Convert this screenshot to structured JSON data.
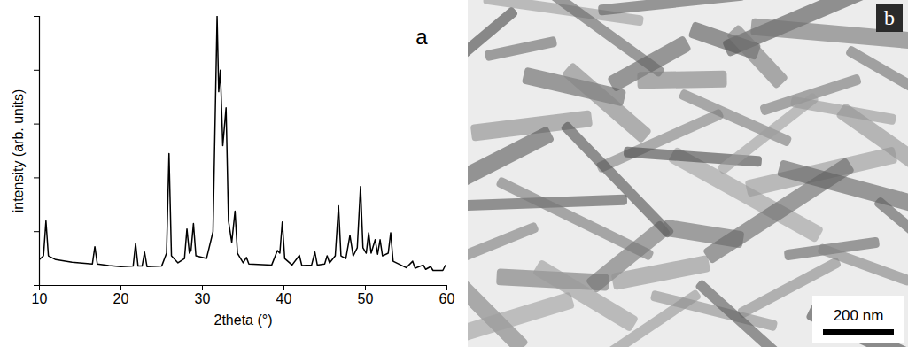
{
  "chart_data": {
    "type": "line",
    "x_label": "2theta (°)",
    "y_label": "intensity (arb. units)",
    "annotations": [
      "a"
    ],
    "color": "#000000",
    "xlim": [
      10,
      60
    ],
    "xticks": [
      10,
      20,
      30,
      40,
      50,
      60
    ],
    "ylim": [
      0,
      5
    ],
    "yticks": [
      0,
      1,
      2,
      3,
      4,
      5
    ],
    "tick_labels": "x",
    "x": [
      10.0,
      10.5,
      10.8,
      11.1,
      12.0,
      14.0,
      16.5,
      16.8,
      17.1,
      18.5,
      20.0,
      21.5,
      21.8,
      22.1,
      22.6,
      22.9,
      23.2,
      25.0,
      25.6,
      25.9,
      26.2,
      27.0,
      27.8,
      28.1,
      28.4,
      28.6,
      28.9,
      29.2,
      30.5,
      31.3,
      31.8,
      32.0,
      32.2,
      32.5,
      32.9,
      33.2,
      33.6,
      34.0,
      34.3,
      35.0,
      35.4,
      35.7,
      38.5,
      39.2,
      39.5,
      39.8,
      40.1,
      41.0,
      41.9,
      42.2,
      43.4,
      43.8,
      44.1,
      45.0,
      45.3,
      45.6,
      46.3,
      46.7,
      47.0,
      47.6,
      48.1,
      48.5,
      49.0,
      49.4,
      49.7,
      50.1,
      50.4,
      50.7,
      51.2,
      51.5,
      51.8,
      52.1,
      52.8,
      53.1,
      53.4,
      55.0,
      55.8,
      56.1,
      57.1,
      57.4,
      58.0,
      58.3,
      59.5,
      59.8,
      60.0
    ],
    "values": [
      0.48,
      0.55,
      1.2,
      0.55,
      0.48,
      0.43,
      0.4,
      0.72,
      0.4,
      0.37,
      0.35,
      0.36,
      0.78,
      0.36,
      0.36,
      0.62,
      0.35,
      0.36,
      0.6,
      2.45,
      0.55,
      0.42,
      0.5,
      1.05,
      0.6,
      0.65,
      1.15,
      0.55,
      0.5,
      1.0,
      5.0,
      3.6,
      4.0,
      2.6,
      3.3,
      1.2,
      0.8,
      1.38,
      0.6,
      0.42,
      0.52,
      0.4,
      0.38,
      0.65,
      0.6,
      1.18,
      0.5,
      0.38,
      0.56,
      0.37,
      0.38,
      0.62,
      0.38,
      0.4,
      0.55,
      0.42,
      0.55,
      1.48,
      0.55,
      0.5,
      0.93,
      0.55,
      0.7,
      1.84,
      0.7,
      0.6,
      0.98,
      0.6,
      0.85,
      0.58,
      0.85,
      0.55,
      0.6,
      0.98,
      0.45,
      0.33,
      0.45,
      0.32,
      0.38,
      0.3,
      0.35,
      0.28,
      0.28,
      0.37,
      0.38
    ]
  },
  "image_panel": {
    "letter": "b",
    "scale_bar": "200 nm"
  }
}
